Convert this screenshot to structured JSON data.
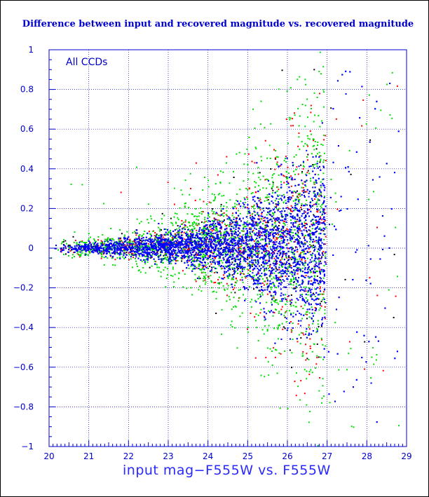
{
  "chart_data": {
    "type": "scatter",
    "title": "Difference between input and recovered magnitude vs. recovered magnitude",
    "xlabel": "input mag−F555W vs. F555W",
    "ylabel": "",
    "xlim": [
      20,
      29
    ],
    "ylim": [
      -1,
      1
    ],
    "x_ticks": [
      "20",
      "21",
      "22",
      "23",
      "24",
      "25",
      "26",
      "27",
      "28",
      "29"
    ],
    "y_ticks": [
      "−1",
      "−0.8",
      "−0.6",
      "−0.4",
      "−0.2",
      "0",
      "0.2",
      "0.4",
      "0.6",
      "0.8",
      "1"
    ],
    "grid": true,
    "annotation": "All CCDs",
    "series_colors": {
      "black": "#000000",
      "red": "#ff0000",
      "green": "#00dd00",
      "blue": "#0000ff"
    },
    "axis_color": "#0000cc",
    "trend": [
      {
        "x": 20.0,
        "scatter": 0.015
      },
      {
        "x": 21.0,
        "scatter": 0.025
      },
      {
        "x": 22.0,
        "scatter": 0.04
      },
      {
        "x": 23.0,
        "scatter": 0.06
      },
      {
        "x": 24.0,
        "scatter": 0.1
      },
      {
        "x": 25.0,
        "scatter": 0.17
      },
      {
        "x": 26.0,
        "scatter": 0.28
      },
      {
        "x": 26.95,
        "scatter": 0.38
      }
    ],
    "cutoff_x": 26.95
  }
}
